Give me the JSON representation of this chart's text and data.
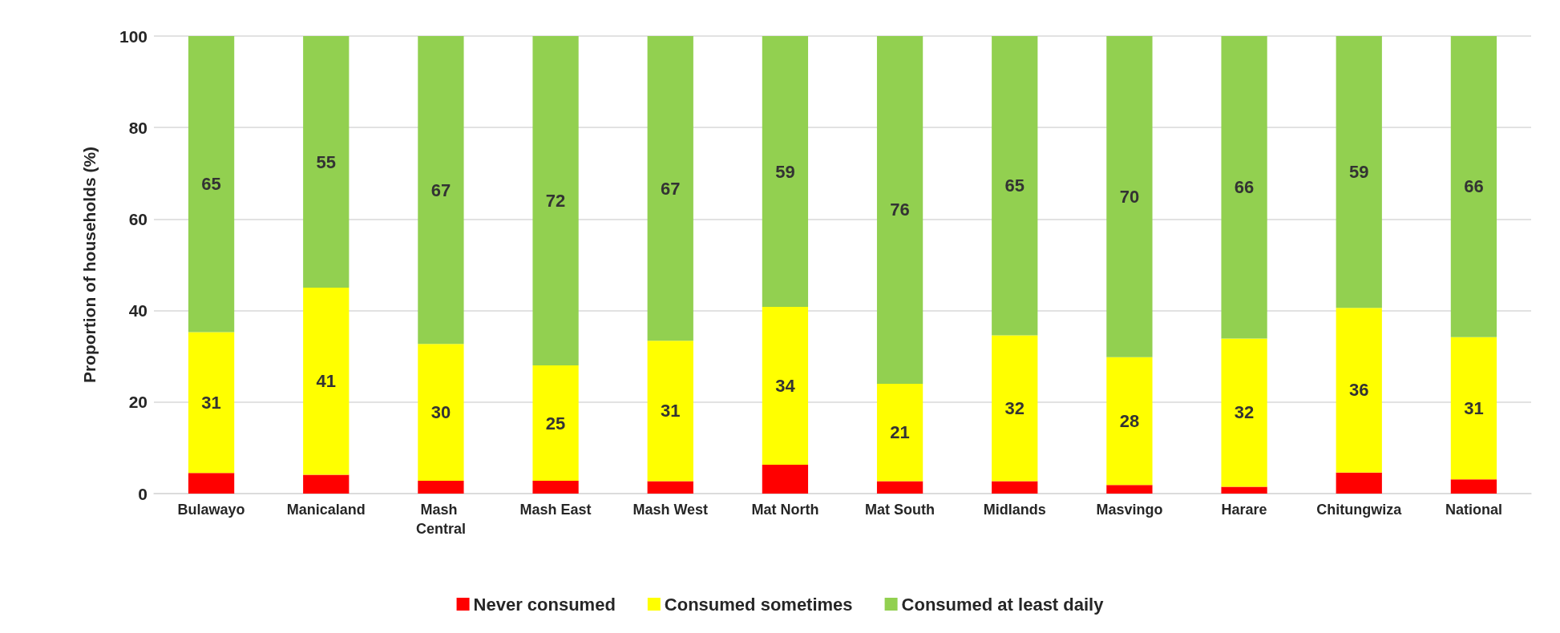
{
  "chart_data": {
    "type": "bar",
    "stacked": true,
    "ylabel": "Proportion of households (%)",
    "categories": [
      "Bulawayo",
      "Manicaland",
      "Mash Central",
      "Mash East",
      "Mash West",
      "Mat North",
      "Mat South",
      "Midlands",
      "Masvingo",
      "Harare",
      "Chitungwiza",
      "National"
    ],
    "series": [
      {
        "name": "Never consumed",
        "color": "#ff0000",
        "values": [
          4.5,
          4.1,
          2.8,
          2.8,
          2.7,
          6.3,
          2.7,
          2.7,
          1.9,
          1.5,
          4.6,
          3.1
        ]
      },
      {
        "name": "Consumed sometimes",
        "color": "#ffff00",
        "values": [
          30.8,
          40.9,
          29.9,
          25.2,
          30.7,
          34.5,
          21.3,
          31.9,
          27.9,
          32.4,
          36.0,
          31.1
        ],
        "value_labels": [
          "31",
          "41",
          "30",
          "25",
          "31",
          "34",
          "21",
          "32",
          "28",
          "32",
          "36",
          "31"
        ]
      },
      {
        "name": "Consumed at least daily",
        "color": "#92d050",
        "values": [
          64.7,
          55.0,
          67.3,
          72.0,
          66.6,
          59.2,
          76.0,
          65.4,
          70.2,
          66.1,
          59.4,
          65.8
        ],
        "value_labels": [
          "65",
          "55",
          "67",
          "72",
          "67",
          "59",
          "76",
          "65",
          "70",
          "66",
          "59",
          "66"
        ]
      }
    ],
    "ylim": [
      0,
      100
    ],
    "yticks": [
      0,
      20,
      40,
      60,
      80,
      100
    ],
    "grid": "y",
    "legend": "bottom"
  }
}
